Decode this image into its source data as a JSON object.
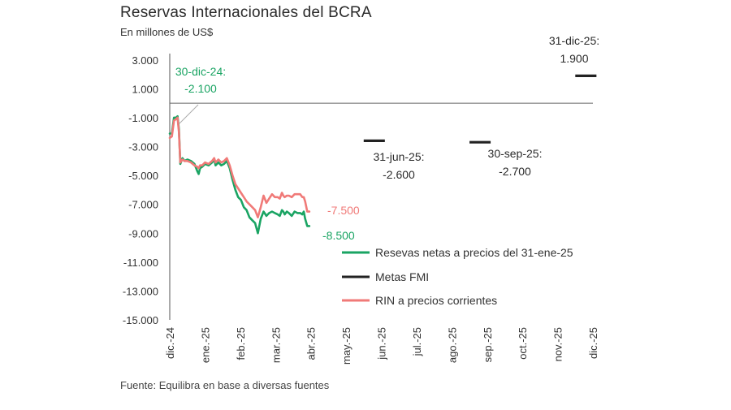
{
  "chart_data": {
    "type": "line",
    "title": "Reservas Internacionales del BCRA",
    "subtitle": "En millones de US$",
    "source": "Fuente: Equilibra en base a diversas fuentes",
    "x_ticks": [
      "dic.-24",
      "ene.-25",
      "feb.-25",
      "mar.-25",
      "abr.-25",
      "may.-25",
      "jun.-25",
      "jul.-25",
      "ago.-25",
      "sep.-25",
      "oct.-25",
      "nov.-25",
      "dic.-25"
    ],
    "y_ticks": [
      "3.000",
      "1.000",
      "-1.000",
      "-3.000",
      "-5.000",
      "-7.000",
      "-9.000",
      "-11.000",
      "-13.000",
      "-15.000"
    ],
    "ylim": [
      -15000,
      4000
    ],
    "zero_line": true,
    "colors": {
      "netas": "#1aa463",
      "metas": "#222222",
      "rin": "#f07a78",
      "ann_green": "#1aa463",
      "ann_red": "#f07a78",
      "ann_dark": "#2b2b2b"
    },
    "series": [
      {
        "name": "Resevas netas a precios del 31-ene-25",
        "color": "#1aa463",
        "x": [
          0,
          0.06,
          0.12,
          0.18,
          0.22,
          0.26,
          0.3,
          0.36,
          0.42,
          0.5,
          0.6,
          0.7,
          0.78,
          0.82,
          0.86,
          0.92,
          1.0,
          1.1,
          1.2,
          1.26,
          1.3,
          1.38,
          1.46,
          1.54,
          1.62,
          1.7,
          1.78,
          1.86,
          1.94,
          2.02,
          2.1,
          2.18,
          2.26,
          2.34,
          2.42,
          2.5,
          2.58,
          2.66,
          2.74,
          2.82,
          2.9,
          2.98,
          3.06,
          3.12,
          3.18,
          3.22,
          3.26,
          3.32,
          3.38,
          3.46,
          3.54,
          3.62,
          3.7,
          3.76,
          3.8,
          3.84,
          3.9,
          3.96
        ],
        "y": [
          -2100,
          -2100,
          -1000,
          -1000,
          -900,
          -1800,
          -4200,
          -3800,
          -4000,
          -3900,
          -4000,
          -4200,
          -4700,
          -4900,
          -4500,
          -4400,
          -4200,
          -4300,
          -4100,
          -3900,
          -4300,
          -4100,
          -4300,
          -4200,
          -4000,
          -4500,
          -5300,
          -6000,
          -6500,
          -6700,
          -7200,
          -7400,
          -7900,
          -8100,
          -8300,
          -9000,
          -8000,
          -7500,
          -7800,
          -7600,
          -7500,
          -7600,
          -7700,
          -7800,
          -7400,
          -7500,
          -7700,
          -7500,
          -7600,
          -7800,
          -7500,
          -7600,
          -7600,
          -7700,
          -7500,
          -8000,
          -8500,
          -8500
        ]
      },
      {
        "name": "Metas FMI",
        "color": "#222222",
        "segments": [
          {
            "x": [
              5.5,
              6.1
            ],
            "y": -2600
          },
          {
            "x": [
              8.5,
              9.1
            ],
            "y": -2700
          },
          {
            "x": [
              11.5,
              12.1
            ],
            "y": 1900
          }
        ]
      },
      {
        "name": "RIN a precios corrientes",
        "color": "#f07a78",
        "x": [
          0,
          0.06,
          0.12,
          0.18,
          0.22,
          0.26,
          0.3,
          0.36,
          0.42,
          0.5,
          0.6,
          0.7,
          0.78,
          0.82,
          0.86,
          0.92,
          1.0,
          1.1,
          1.2,
          1.26,
          1.3,
          1.38,
          1.46,
          1.54,
          1.62,
          1.7,
          1.78,
          1.86,
          1.94,
          2.02,
          2.1,
          2.18,
          2.26,
          2.34,
          2.42,
          2.5,
          2.58,
          2.66,
          2.74,
          2.82,
          2.9,
          2.98,
          3.06,
          3.12,
          3.18,
          3.22,
          3.26,
          3.32,
          3.38,
          3.46,
          3.54,
          3.62,
          3.7,
          3.76,
          3.8,
          3.84,
          3.9,
          3.96
        ],
        "y": [
          -2400,
          -2300,
          -1200,
          -1100,
          -1000,
          -2000,
          -4100,
          -3900,
          -4000,
          -4000,
          -4100,
          -4300,
          -4400,
          -4500,
          -4300,
          -4300,
          -4100,
          -4200,
          -4000,
          -3800,
          -4100,
          -3900,
          -4100,
          -4000,
          -3800,
          -4300,
          -5000,
          -5600,
          -5900,
          -6200,
          -6500,
          -6800,
          -7000,
          -7200,
          -7400,
          -7900,
          -7200,
          -6400,
          -6900,
          -6600,
          -6300,
          -6500,
          -6500,
          -6600,
          -6200,
          -6400,
          -6500,
          -6400,
          -6400,
          -6500,
          -6300,
          -6300,
          -6300,
          -6500,
          -6500,
          -6800,
          -7500,
          -7500
        ]
      }
    ],
    "annotations": [
      {
        "id": "ann-dic24",
        "line1": "30-dic-24:",
        "line2": "-2.100",
        "color": "#1aa463"
      },
      {
        "id": "ann-jun25",
        "line1": "31-jun-25:",
        "line2": "-2.600",
        "color": "#2b2b2b"
      },
      {
        "id": "ann-sep25",
        "line1": "30-sep-25:",
        "line2": "-2.700",
        "color": "#2b2b2b"
      },
      {
        "id": "ann-dic25",
        "line1": "31-dic-25:",
        "line2": "1.900",
        "color": "#2b2b2b"
      },
      {
        "id": "ann-rin-end",
        "line1": "-7.500",
        "color": "#f07a78"
      },
      {
        "id": "ann-netas-end",
        "line1": "-8.500",
        "color": "#1aa463"
      }
    ],
    "legend": [
      {
        "label": "Resevas netas a precios del 31-ene-25",
        "color": "#1aa463"
      },
      {
        "label": "Metas FMI",
        "color": "#222222"
      },
      {
        "label": "RIN a precios corrientes",
        "color": "#f07a78"
      }
    ]
  }
}
